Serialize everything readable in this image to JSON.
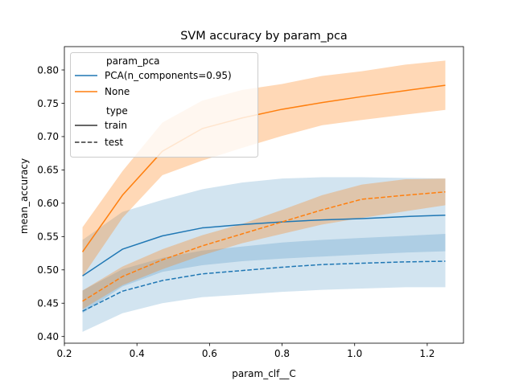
{
  "chart_data": {
    "type": "line",
    "title": "SVM accuracy by param_pca",
    "xlabel": "param_clf__C",
    "ylabel": "mean_accuracy",
    "xlim": [
      0.2,
      1.3
    ],
    "ylim": [
      0.39,
      0.835
    ],
    "xticks": [
      0.2,
      0.4,
      0.6,
      0.8,
      1.0,
      1.2
    ],
    "xtick_labels": [
      "0.2",
      "0.4",
      "0.6",
      "0.8",
      "1.0",
      "1.2"
    ],
    "yticks": [
      0.4,
      0.45,
      0.5,
      0.55,
      0.6,
      0.65,
      0.7,
      0.75,
      0.8
    ],
    "ytick_labels": [
      "0.40",
      "0.45",
      "0.50",
      "0.55",
      "0.60",
      "0.65",
      "0.70",
      "0.75",
      "0.80"
    ],
    "grid": false,
    "legend": {
      "placement": "top-left",
      "hue_title": "param_pca",
      "hue_entries": [
        {
          "label": "PCA(n_components=0.95)",
          "color": "#1f77b4"
        },
        {
          "label": "None",
          "color": "#ff7f0e"
        }
      ],
      "style_title": "type",
      "style_entries": [
        {
          "label": "train",
          "dash": "solid"
        },
        {
          "label": "test",
          "dash": "dashed"
        }
      ]
    },
    "x": [
      0.25,
      0.36,
      0.47,
      0.58,
      0.69,
      0.8,
      0.91,
      1.02,
      1.14,
      1.25
    ],
    "series": [
      {
        "pca": "PCA(n_components=0.95)",
        "type": "train",
        "color": "#1f77b4",
        "dash": "solid",
        "values": [
          0.491,
          0.531,
          0.551,
          0.563,
          0.568,
          0.572,
          0.575,
          0.577,
          0.58,
          0.582
        ],
        "lower": [
          0.435,
          0.475,
          0.497,
          0.507,
          0.513,
          0.517,
          0.52,
          0.523,
          0.526,
          0.528
        ],
        "upper": [
          0.545,
          0.587,
          0.605,
          0.621,
          0.631,
          0.637,
          0.639,
          0.639,
          0.638,
          0.637
        ],
        "band_opacity": 0.2
      },
      {
        "pca": "PCA(n_components=0.95)",
        "type": "test",
        "color": "#1f77b4",
        "dash": "dashed",
        "values": [
          0.438,
          0.468,
          0.484,
          0.494,
          0.499,
          0.504,
          0.508,
          0.51,
          0.512,
          0.513
        ],
        "lower": [
          0.407,
          0.435,
          0.45,
          0.459,
          0.463,
          0.467,
          0.47,
          0.472,
          0.474,
          0.474
        ],
        "upper": [
          0.469,
          0.501,
          0.518,
          0.529,
          0.535,
          0.541,
          0.545,
          0.548,
          0.551,
          0.554
        ],
        "band_opacity": 0.2
      },
      {
        "pca": "None",
        "type": "train",
        "color": "#ff7f0e",
        "dash": "solid",
        "values": [
          0.527,
          0.612,
          0.678,
          0.712,
          0.728,
          0.741,
          0.751,
          0.76,
          0.769,
          0.777
        ],
        "lower": [
          0.49,
          0.578,
          0.642,
          0.664,
          0.683,
          0.701,
          0.717,
          0.725,
          0.733,
          0.74
        ],
        "upper": [
          0.564,
          0.648,
          0.721,
          0.754,
          0.77,
          0.779,
          0.791,
          0.798,
          0.808,
          0.814
        ],
        "band_opacity": 0.3
      },
      {
        "pca": "None",
        "type": "test",
        "color": "#ff7f0e",
        "dash": "dashed",
        "values": [
          0.453,
          0.49,
          0.515,
          0.536,
          0.554,
          0.572,
          0.59,
          0.606,
          0.612,
          0.617
        ],
        "lower": [
          0.441,
          0.477,
          0.501,
          0.522,
          0.54,
          0.554,
          0.568,
          0.578,
          0.588,
          0.597
        ],
        "upper": [
          0.469,
          0.505,
          0.531,
          0.552,
          0.569,
          0.59,
          0.612,
          0.628,
          0.636,
          0.637
        ],
        "band_opacity": 0.3
      }
    ]
  }
}
